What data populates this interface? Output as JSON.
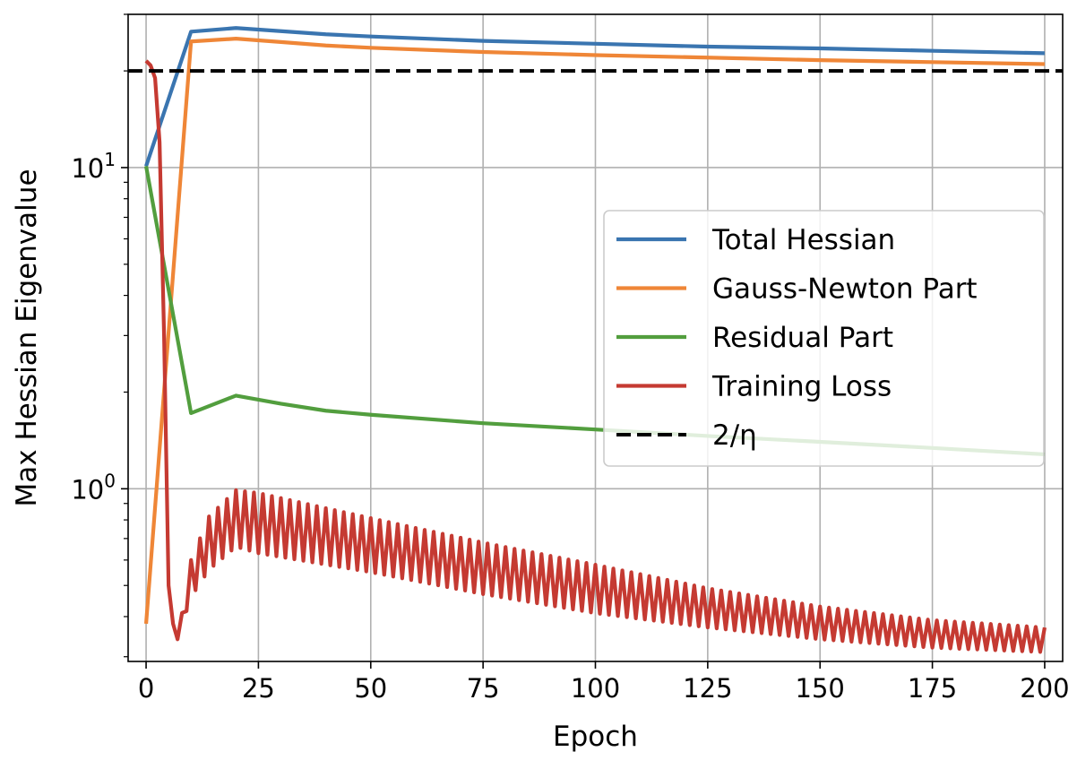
{
  "chart_data": {
    "type": "line",
    "xlabel": "Epoch",
    "ylabel": "Max Hessian Eigenvalue",
    "xlim": [
      -4,
      204
    ],
    "ylim": [
      0.29,
      30
    ],
    "yscale": "log",
    "grid": true,
    "x_ticks": [
      0,
      25,
      50,
      75,
      100,
      125,
      150,
      175,
      200
    ],
    "x_tick_labels": [
      "0",
      "25",
      "50",
      "75",
      "100",
      "125",
      "150",
      "175",
      "200"
    ],
    "y_major_ticks": [
      {
        "value": 1,
        "base": "10",
        "exp": "0"
      },
      {
        "value": 10,
        "base": "10",
        "exp": "1"
      }
    ],
    "y_minor_ticks": [
      0.3,
      0.4,
      0.5,
      0.6,
      0.7,
      0.8,
      0.9,
      2,
      3,
      4,
      5,
      6,
      7,
      8,
      9,
      20,
      30
    ],
    "legend_position": "center-right",
    "series": [
      {
        "name": "Total Hessian",
        "color": "#3a75b0",
        "style": "solid",
        "x": [
          0,
          10,
          20,
          30,
          40,
          50,
          75,
          100,
          125,
          150,
          175,
          200
        ],
        "y": [
          10.1,
          26.5,
          27.2,
          26.6,
          26.0,
          25.6,
          24.8,
          24.3,
          23.8,
          23.5,
          23.1,
          22.7
        ]
      },
      {
        "name": "Gauss-Newton Part",
        "color": "#ef8637",
        "style": "solid",
        "x": [
          0,
          10,
          20,
          30,
          40,
          50,
          75,
          100,
          125,
          150,
          175,
          200
        ],
        "y": [
          0.38,
          24.7,
          25.2,
          24.6,
          24.0,
          23.6,
          22.9,
          22.4,
          22.0,
          21.6,
          21.3,
          21.0
        ]
      },
      {
        "name": "Residual Part",
        "color": "#529e3e",
        "style": "solid",
        "x": [
          0,
          10,
          20,
          30,
          40,
          50,
          75,
          100,
          125,
          150,
          175,
          200
        ],
        "y": [
          10.1,
          1.72,
          1.95,
          1.84,
          1.75,
          1.7,
          1.6,
          1.53,
          1.46,
          1.4,
          1.34,
          1.28
        ]
      },
      {
        "name": "Training Loss",
        "color": "#c53a32",
        "style": "solid",
        "oscillation": {
          "start_epoch": 7,
          "end_epoch": 200,
          "period_epochs": 2
        },
        "x": [
          0,
          1,
          2,
          3,
          4,
          5,
          6,
          7,
          10,
          14,
          20,
          25,
          50,
          75,
          100,
          125,
          150,
          175,
          200
        ],
        "upper": [
          21.5,
          20.8,
          19.0,
          12.0,
          3.0,
          0.5,
          0.38,
          0.34,
          0.6,
          0.82,
          0.99,
          0.97,
          0.81,
          0.68,
          0.58,
          0.49,
          0.43,
          0.39,
          0.37
        ],
        "lower": [
          21.5,
          20.8,
          19.0,
          12.0,
          3.0,
          0.5,
          0.38,
          0.34,
          0.46,
          0.56,
          0.66,
          0.63,
          0.55,
          0.47,
          0.41,
          0.37,
          0.34,
          0.32,
          0.31
        ]
      },
      {
        "name": "2/η",
        "color": "#000000",
        "style": "dashed",
        "x": [
          -4,
          204
        ],
        "y": [
          20,
          20
        ]
      }
    ]
  }
}
